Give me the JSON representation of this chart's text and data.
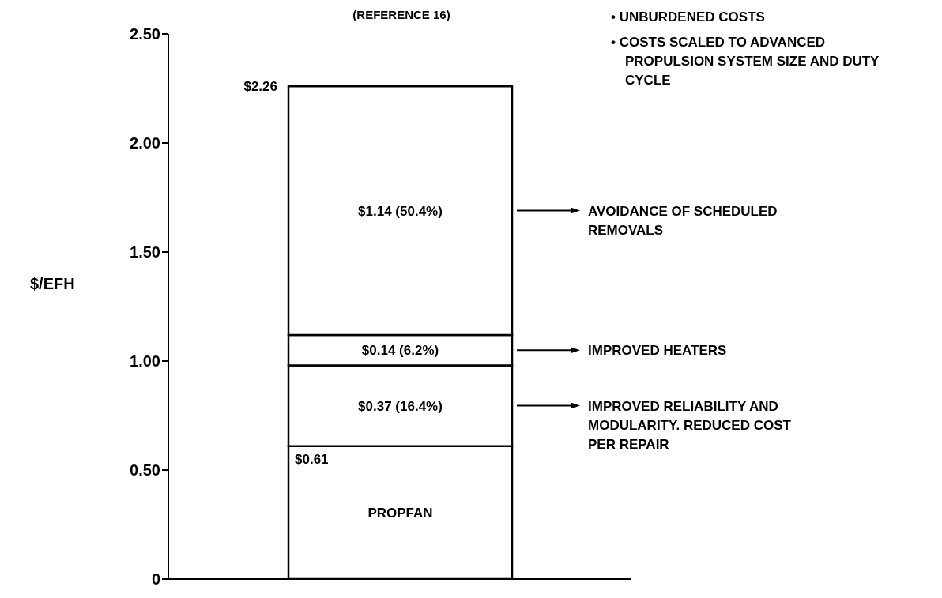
{
  "chart_data": {
    "type": "bar",
    "stacked": true,
    "ylabel": "$/EFH",
    "categories": [
      null
    ],
    "ylim": [
      0,
      2.5
    ],
    "yticks": [
      0,
      {
        "value": 0.5,
        "label": "0.50"
      },
      {
        "value": 1,
        "label": "1.00"
      },
      {
        "value": 1.5,
        "label": "1.50"
      },
      {
        "value": 2,
        "label": "2.00"
      },
      {
        "value": 2.5,
        "label": "2.50"
      }
    ],
    "series": [
      {
        "name": "PROPFAN",
        "color": "#ffffff",
        "values": [
          0.61
        ],
        "value_labels": [
          "$0.61"
        ]
      },
      {
        "name": "IMPROVED RELIABILITY AND MODULARITY. REDUCED COST PER REPAIR",
        "color": "#ffffff",
        "values": [
          0.37
        ],
        "value_labels": [
          "$0.37  (16.4%)"
        ]
      },
      {
        "name": "IMPROVED HEATERS",
        "color": "#ffffff",
        "values": [
          0.14
        ],
        "value_labels": [
          "$0.14 (6.2%)"
        ]
      },
      {
        "name": "AVOIDANCE OF SCHEDULED REMOVALS",
        "color": "#ffffff",
        "values": [
          1.14
        ],
        "value_labels": [
          "$1.14  (50.4%)"
        ]
      }
    ],
    "totals": [
      "$2.26"
    ],
    "annotations": [
      "(REFERENCE 16)",
      "• UNBURDENED COSTS",
      "• COSTS SCALED TO ADVANCED PROPULSION SYSTEM SIZE AND DUTY CYCLE"
    ],
    "legend": "right"
  }
}
